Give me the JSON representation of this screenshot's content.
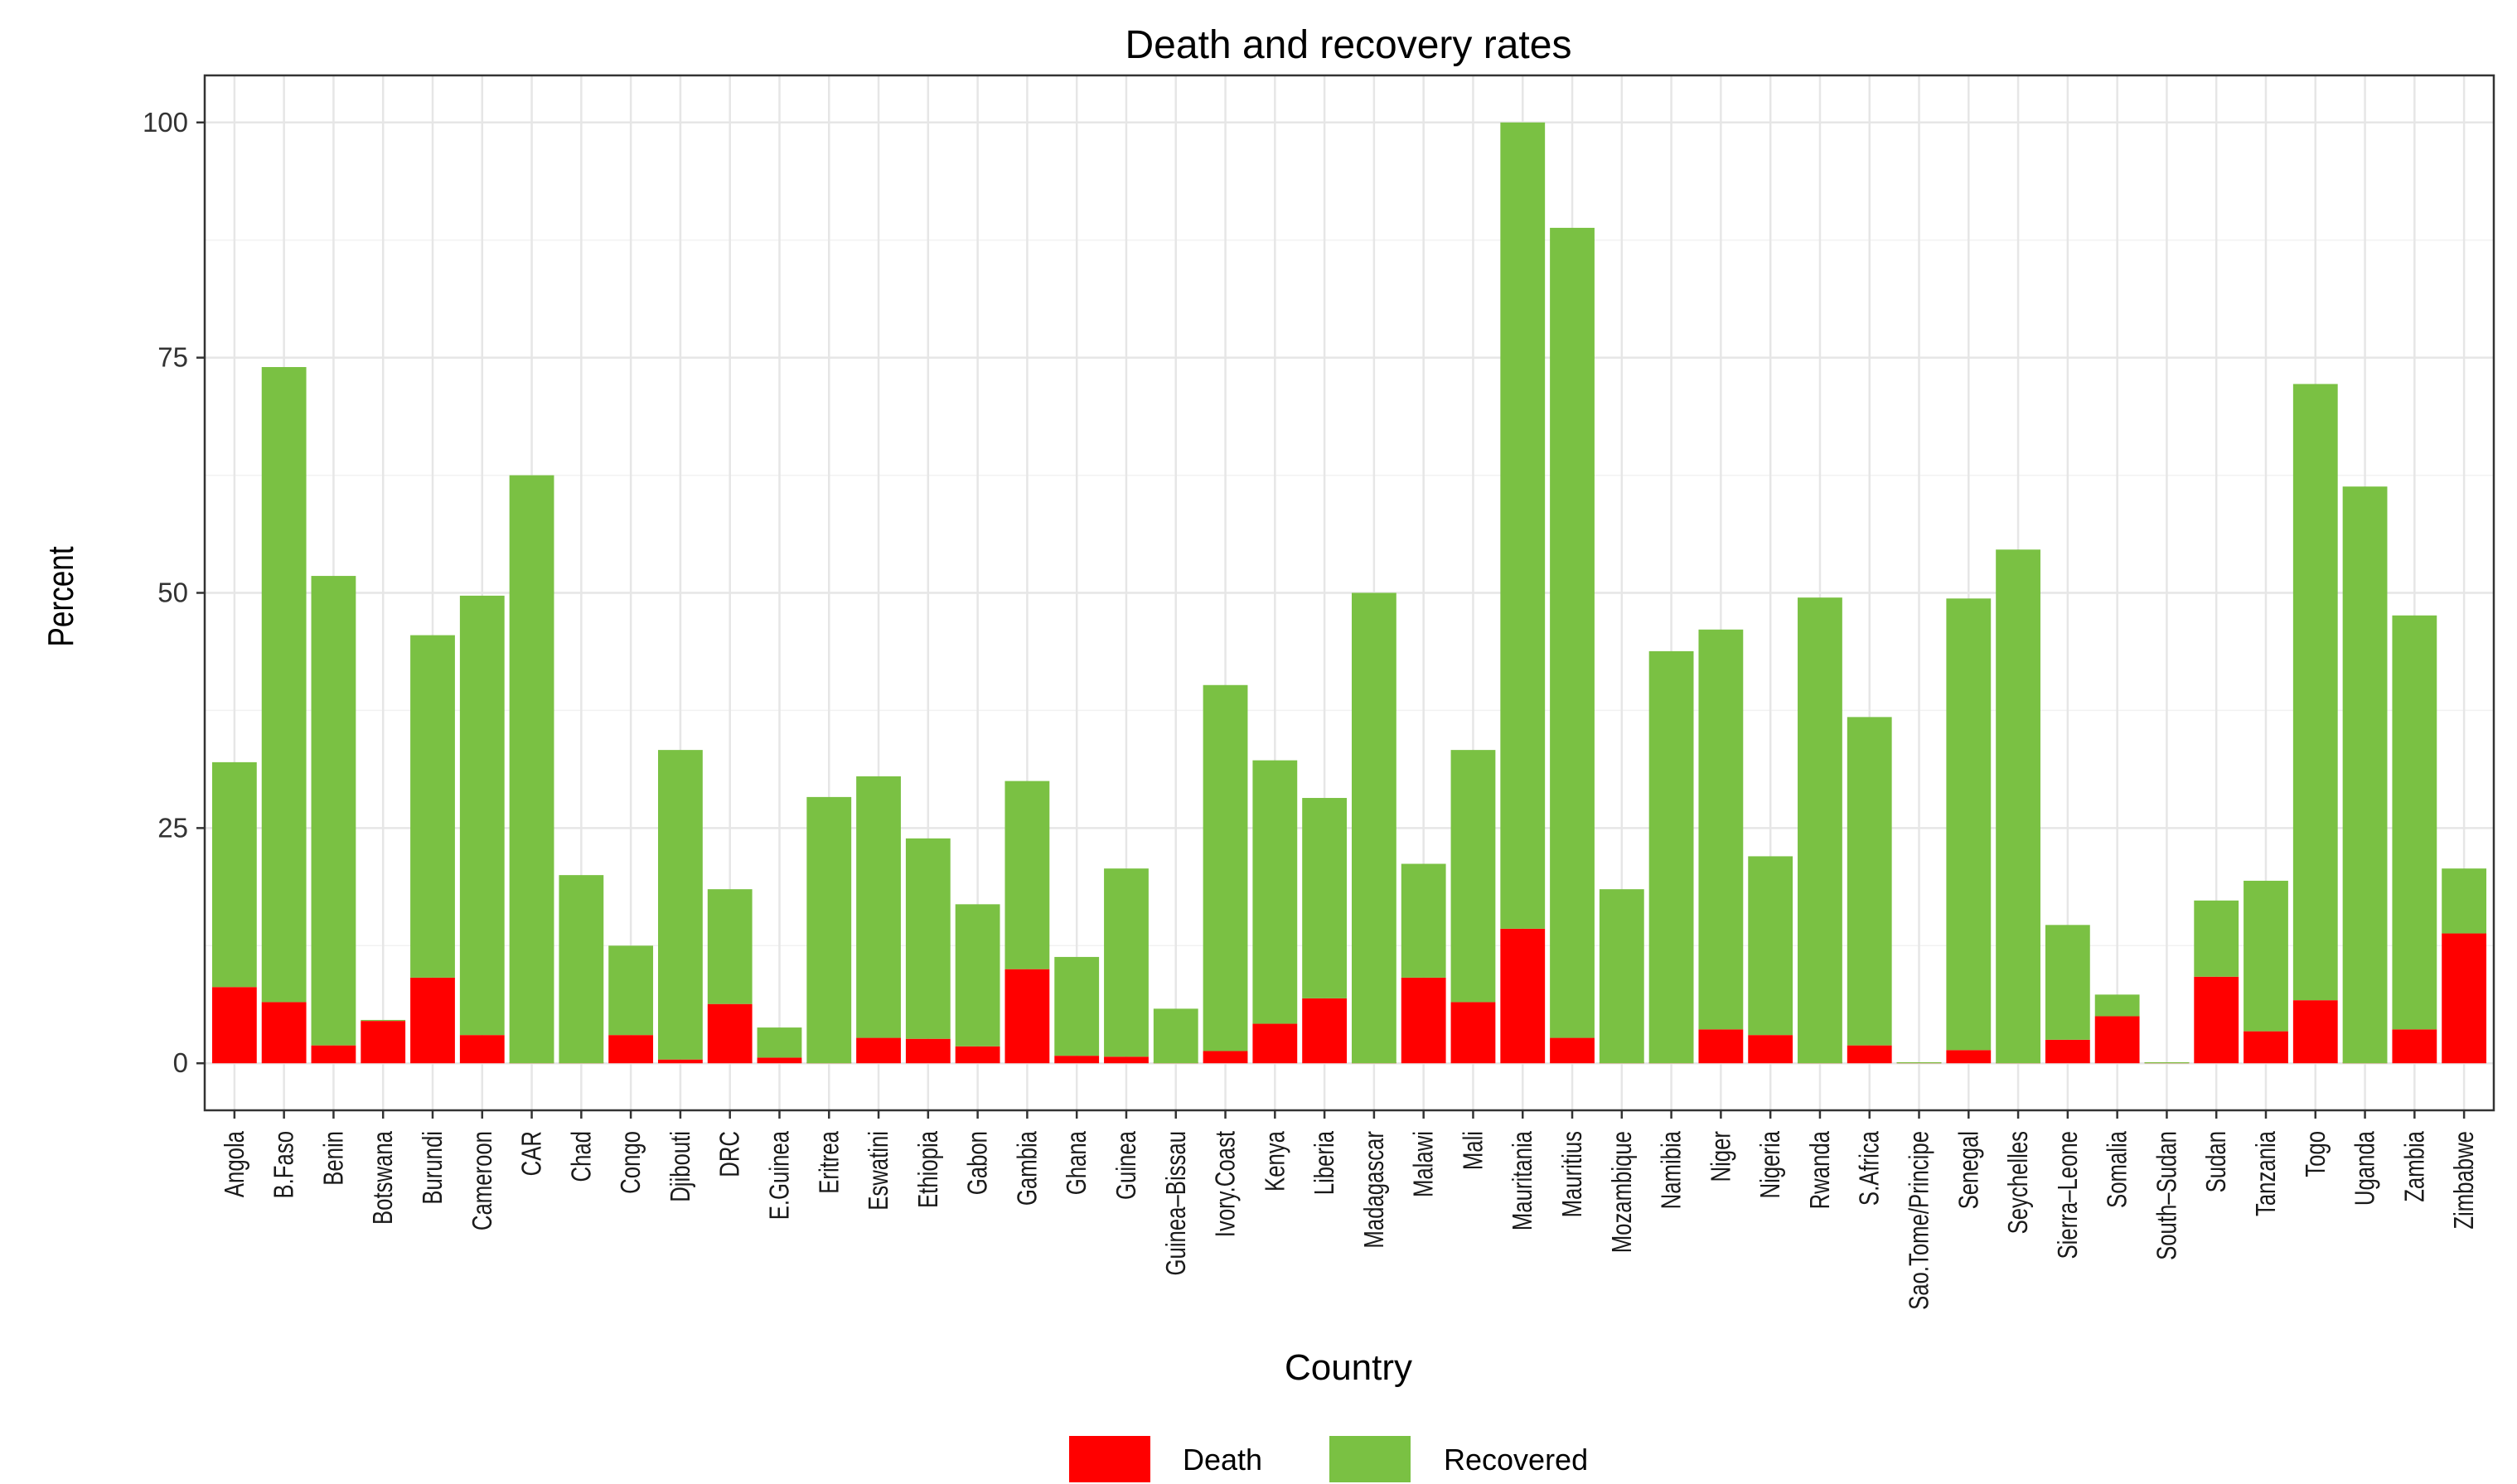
{
  "chart_data": {
    "type": "bar",
    "stacked": true,
    "title": "Death and recovery rates",
    "xlabel": "Country",
    "ylabel": "Percent",
    "ylim": [
      -5,
      105
    ],
    "yticks": [
      0,
      25,
      50,
      75,
      100
    ],
    "grid": true,
    "legend_position": "bottom",
    "categories": [
      "Angola",
      "B.Faso",
      "Benin",
      "Botswana",
      "Burundi",
      "Cameroon",
      "CAR",
      "Chad",
      "Congo",
      "Djibouti",
      "DRC",
      "E.Guinea",
      "Eritrea",
      "Eswatini",
      "Ethiopia",
      "Gabon",
      "Gambia",
      "Ghana",
      "Guinea",
      "Guinea–Bissau",
      "Ivory.Coast",
      "Kenya",
      "Liberia",
      "Madagascar",
      "Malawi",
      "Mali",
      "Mauritania",
      "Mauritius",
      "Mozambique",
      "Namibia",
      "Niger",
      "Nigeria",
      "Rwanda",
      "S.Africa",
      "Sao.Tome/Principe",
      "Senegal",
      "Seychelles",
      "Sierra–Leone",
      "Somalia",
      "South–Sudan",
      "Sudan",
      "Tanzania",
      "Togo",
      "Uganda",
      "Zambia",
      "Zimbabwe"
    ],
    "series": [
      {
        "name": "Death",
        "color": "#FF0000",
        "values": [
          8.1,
          6.5,
          1.9,
          4.5,
          9.1,
          3.0,
          0.0,
          0.0,
          3.0,
          0.4,
          6.3,
          0.6,
          0.0,
          2.7,
          2.6,
          1.8,
          10.0,
          0.8,
          0.7,
          0.0,
          1.3,
          4.2,
          6.9,
          0.0,
          9.1,
          6.5,
          14.3,
          2.7,
          0.0,
          0.0,
          3.6,
          3.0,
          0.0,
          1.9,
          0.0,
          1.4,
          0.0,
          2.5,
          5.0,
          0.0,
          9.2,
          3.4,
          6.7,
          0.0,
          3.6,
          13.8
        ]
      },
      {
        "name": "Recovered",
        "color": "#7AC143",
        "values": [
          23.9,
          67.5,
          49.9,
          0.0,
          36.4,
          46.7,
          62.5,
          20.0,
          9.5,
          32.9,
          12.2,
          3.2,
          28.3,
          27.8,
          21.3,
          15.1,
          20.0,
          10.5,
          20.0,
          5.8,
          38.9,
          28.0,
          21.3,
          50.0,
          12.1,
          26.8,
          85.7,
          86.1,
          18.5,
          43.8,
          42.5,
          19.0,
          49.5,
          34.9,
          0.0,
          48.0,
          54.6,
          12.2,
          2.3,
          0.0,
          8.1,
          16.0,
          65.5,
          61.3,
          44.0,
          6.9
        ]
      }
    ]
  }
}
